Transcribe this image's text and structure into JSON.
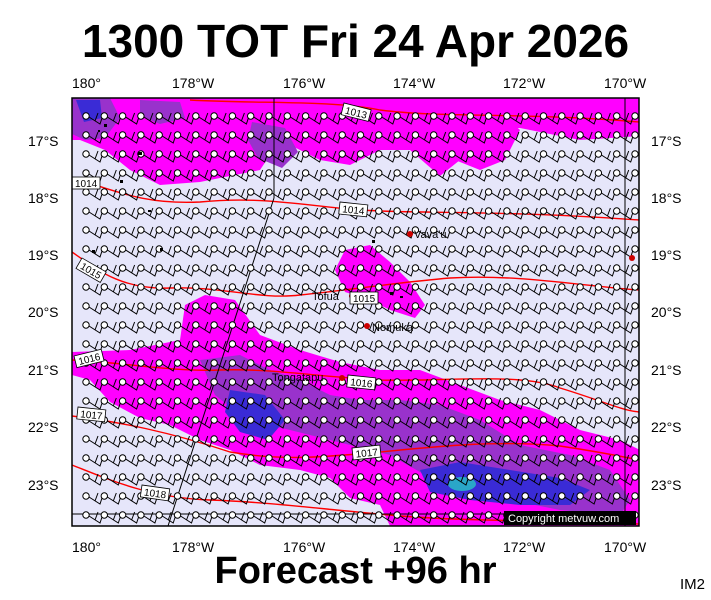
{
  "header": {
    "title": "1300 TOT Fri 24 Apr 2026"
  },
  "footer": {
    "forecast_label": "Forecast +96 hr",
    "image_tag": "IM2"
  },
  "map": {
    "background_color": "#e6e6fa",
    "precip_colors": {
      "light": "#ff00ff",
      "medium": "#9932cc",
      "heavy": "#3a2bd6",
      "core": "#2aa6c8"
    },
    "isobar_color": "#ff0000",
    "lon_ticks": [
      "180°",
      "178°W",
      "176°W",
      "174°W",
      "172°W",
      "170°W"
    ],
    "lat_ticks": [
      "17°S",
      "18°S",
      "19°S",
      "20°S",
      "21°S",
      "22°S",
      "23°S"
    ],
    "isobar_labels": [
      "1013",
      "1014",
      "1014",
      "1015",
      "1015",
      "1016",
      "1016",
      "1017",
      "1017",
      "1018"
    ],
    "places": [
      "Vava'u",
      "Tofua",
      "Nomuka",
      "Tongatapu"
    ],
    "copyright": "Copyright metvuw.com"
  }
}
